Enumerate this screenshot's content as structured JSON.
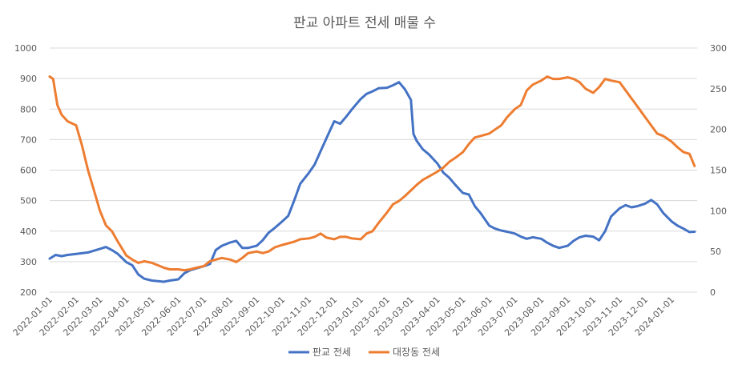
{
  "chart_data": {
    "type": "line",
    "title": "판교 아파트 전세 매물 수",
    "xlabel": "",
    "ylabel": "",
    "y_left": {
      "min": 200,
      "max": 1000,
      "ticks": [
        200,
        300,
        400,
        500,
        600,
        700,
        800,
        900,
        1000
      ]
    },
    "y_right": {
      "min": 0,
      "max": 300,
      "ticks": [
        0,
        50,
        100,
        150,
        200,
        250,
        300
      ]
    },
    "grid": true,
    "legend_position": "bottom",
    "x_tick_labels": [
      "2022-01-01",
      "2022-02-01",
      "2022-03-01",
      "2022-04-01",
      "2022-05-01",
      "2022-06-01",
      "2022-07-01",
      "2022-08-01",
      "2022-09-01",
      "2022-10-01",
      "2022-11-01",
      "2022-12-01",
      "2023-01-01",
      "2023-02-01",
      "2023-03-01",
      "2023-04-01",
      "2023-05-01",
      "2023-06-01",
      "2023-07-01",
      "2023-08-01",
      "2023-09-01",
      "2023-10-01",
      "2023-11-01",
      "2023-12-01",
      "2024-01-01"
    ],
    "series": [
      {
        "name": "판교 전세",
        "axis": "left",
        "color": "#4472C4",
        "points": [
          [
            "2022-01-01",
            310
          ],
          [
            "2022-01-08",
            322
          ],
          [
            "2022-01-15",
            318
          ],
          [
            "2022-01-22",
            322
          ],
          [
            "2022-02-01",
            325
          ],
          [
            "2022-02-15",
            330
          ],
          [
            "2022-03-01",
            342
          ],
          [
            "2022-03-08",
            348
          ],
          [
            "2022-03-15",
            338
          ],
          [
            "2022-03-22",
            325
          ],
          [
            "2022-04-01",
            298
          ],
          [
            "2022-04-08",
            288
          ],
          [
            "2022-04-15",
            258
          ],
          [
            "2022-04-22",
            244
          ],
          [
            "2022-05-01",
            238
          ],
          [
            "2022-05-08",
            236
          ],
          [
            "2022-05-15",
            234
          ],
          [
            "2022-05-22",
            238
          ],
          [
            "2022-06-01",
            242
          ],
          [
            "2022-06-08",
            262
          ],
          [
            "2022-06-15",
            272
          ],
          [
            "2022-06-22",
            278
          ],
          [
            "2022-07-01",
            285
          ],
          [
            "2022-07-08",
            292
          ],
          [
            "2022-07-15",
            338
          ],
          [
            "2022-07-22",
            352
          ],
          [
            "2022-08-01",
            363
          ],
          [
            "2022-08-08",
            368
          ],
          [
            "2022-08-15",
            345
          ],
          [
            "2022-08-22",
            345
          ],
          [
            "2022-09-01",
            352
          ],
          [
            "2022-09-08",
            370
          ],
          [
            "2022-09-15",
            395
          ],
          [
            "2022-09-22",
            410
          ],
          [
            "2022-10-01",
            432
          ],
          [
            "2022-10-08",
            450
          ],
          [
            "2022-10-15",
            500
          ],
          [
            "2022-10-22",
            555
          ],
          [
            "2022-11-01",
            590
          ],
          [
            "2022-11-08",
            618
          ],
          [
            "2022-11-15",
            662
          ],
          [
            "2022-11-22",
            705
          ],
          [
            "2022-12-01",
            760
          ],
          [
            "2022-12-08",
            752
          ],
          [
            "2022-12-15",
            775
          ],
          [
            "2022-12-22",
            800
          ],
          [
            "2023-01-01",
            833
          ],
          [
            "2023-01-08",
            850
          ],
          [
            "2023-01-15",
            858
          ],
          [
            "2023-01-22",
            868
          ],
          [
            "2023-02-01",
            870
          ],
          [
            "2023-02-08",
            878
          ],
          [
            "2023-02-15",
            888
          ],
          [
            "2023-02-22",
            865
          ],
          [
            "2023-03-01",
            830
          ],
          [
            "2023-03-04",
            718
          ],
          [
            "2023-03-08",
            695
          ],
          [
            "2023-03-15",
            668
          ],
          [
            "2023-03-22",
            652
          ],
          [
            "2023-04-01",
            622
          ],
          [
            "2023-04-08",
            592
          ],
          [
            "2023-04-15",
            575
          ],
          [
            "2023-04-22",
            552
          ],
          [
            "2023-05-01",
            525
          ],
          [
            "2023-05-08",
            520
          ],
          [
            "2023-05-15",
            482
          ],
          [
            "2023-05-22",
            458
          ],
          [
            "2023-06-01",
            418
          ],
          [
            "2023-06-08",
            408
          ],
          [
            "2023-06-15",
            402
          ],
          [
            "2023-06-22",
            398
          ],
          [
            "2023-07-01",
            392
          ],
          [
            "2023-07-08",
            382
          ],
          [
            "2023-07-15",
            375
          ],
          [
            "2023-07-22",
            380
          ],
          [
            "2023-08-01",
            375
          ],
          [
            "2023-08-08",
            362
          ],
          [
            "2023-08-15",
            352
          ],
          [
            "2023-08-22",
            345
          ],
          [
            "2023-09-01",
            352
          ],
          [
            "2023-09-08",
            368
          ],
          [
            "2023-09-15",
            380
          ],
          [
            "2023-09-22",
            385
          ],
          [
            "2023-10-01",
            382
          ],
          [
            "2023-10-08",
            370
          ],
          [
            "2023-10-15",
            400
          ],
          [
            "2023-10-22",
            448
          ],
          [
            "2023-11-01",
            475
          ],
          [
            "2023-11-08",
            485
          ],
          [
            "2023-11-15",
            478
          ],
          [
            "2023-11-22",
            482
          ],
          [
            "2023-12-01",
            490
          ],
          [
            "2023-12-08",
            502
          ],
          [
            "2023-12-15",
            488
          ],
          [
            "2023-12-22",
            460
          ],
          [
            "2024-01-01",
            432
          ],
          [
            "2024-01-08",
            418
          ],
          [
            "2024-01-15",
            408
          ],
          [
            "2024-01-22",
            397
          ],
          [
            "2024-01-28",
            398
          ]
        ]
      },
      {
        "name": "대장동 전세",
        "axis": "right",
        "color": "#ED7D31",
        "points": [
          [
            "2022-01-01",
            265
          ],
          [
            "2022-01-05",
            262
          ],
          [
            "2022-01-10",
            230
          ],
          [
            "2022-01-15",
            218
          ],
          [
            "2022-01-22",
            210
          ],
          [
            "2022-02-01",
            205
          ],
          [
            "2022-02-08",
            180
          ],
          [
            "2022-02-15",
            150
          ],
          [
            "2022-02-22",
            125
          ],
          [
            "2022-03-01",
            100
          ],
          [
            "2022-03-08",
            82
          ],
          [
            "2022-03-15",
            75
          ],
          [
            "2022-03-22",
            62
          ],
          [
            "2022-04-01",
            45
          ],
          [
            "2022-04-08",
            40
          ],
          [
            "2022-04-15",
            36
          ],
          [
            "2022-04-22",
            38
          ],
          [
            "2022-05-01",
            36
          ],
          [
            "2022-05-08",
            33
          ],
          [
            "2022-05-15",
            30
          ],
          [
            "2022-05-22",
            28
          ],
          [
            "2022-06-01",
            28
          ],
          [
            "2022-06-08",
            27
          ],
          [
            "2022-06-15",
            28
          ],
          [
            "2022-06-22",
            30
          ],
          [
            "2022-07-01",
            32
          ],
          [
            "2022-07-08",
            38
          ],
          [
            "2022-07-15",
            40
          ],
          [
            "2022-07-22",
            42
          ],
          [
            "2022-08-01",
            40
          ],
          [
            "2022-08-08",
            37
          ],
          [
            "2022-08-15",
            42
          ],
          [
            "2022-08-22",
            48
          ],
          [
            "2022-09-01",
            50
          ],
          [
            "2022-09-08",
            48
          ],
          [
            "2022-09-15",
            50
          ],
          [
            "2022-09-22",
            55
          ],
          [
            "2022-10-01",
            58
          ],
          [
            "2022-10-08",
            60
          ],
          [
            "2022-10-15",
            62
          ],
          [
            "2022-10-22",
            65
          ],
          [
            "2022-11-01",
            66
          ],
          [
            "2022-11-08",
            68
          ],
          [
            "2022-11-15",
            72
          ],
          [
            "2022-11-22",
            67
          ],
          [
            "2022-12-01",
            65
          ],
          [
            "2022-12-08",
            68
          ],
          [
            "2022-12-15",
            68
          ],
          [
            "2022-12-22",
            66
          ],
          [
            "2023-01-01",
            65
          ],
          [
            "2023-01-08",
            72
          ],
          [
            "2023-01-15",
            75
          ],
          [
            "2023-01-22",
            85
          ],
          [
            "2023-02-01",
            98
          ],
          [
            "2023-02-08",
            108
          ],
          [
            "2023-02-15",
            112
          ],
          [
            "2023-02-22",
            118
          ],
          [
            "2023-03-01",
            125
          ],
          [
            "2023-03-08",
            132
          ],
          [
            "2023-03-15",
            138
          ],
          [
            "2023-03-22",
            142
          ],
          [
            "2023-04-01",
            148
          ],
          [
            "2023-04-08",
            153
          ],
          [
            "2023-04-15",
            160
          ],
          [
            "2023-04-22",
            165
          ],
          [
            "2023-05-01",
            172
          ],
          [
            "2023-05-08",
            182
          ],
          [
            "2023-05-15",
            190
          ],
          [
            "2023-05-22",
            192
          ],
          [
            "2023-06-01",
            195
          ],
          [
            "2023-06-08",
            200
          ],
          [
            "2023-06-15",
            205
          ],
          [
            "2023-06-22",
            215
          ],
          [
            "2023-07-01",
            225
          ],
          [
            "2023-07-08",
            230
          ],
          [
            "2023-07-15",
            248
          ],
          [
            "2023-07-22",
            255
          ],
          [
            "2023-08-01",
            260
          ],
          [
            "2023-08-08",
            265
          ],
          [
            "2023-08-15",
            262
          ],
          [
            "2023-08-22",
            262
          ],
          [
            "2023-09-01",
            264
          ],
          [
            "2023-09-08",
            262
          ],
          [
            "2023-09-15",
            258
          ],
          [
            "2023-09-22",
            250
          ],
          [
            "2023-10-01",
            245
          ],
          [
            "2023-10-08",
            252
          ],
          [
            "2023-10-15",
            262
          ],
          [
            "2023-10-22",
            260
          ],
          [
            "2023-11-01",
            258
          ],
          [
            "2023-11-08",
            248
          ],
          [
            "2023-11-15",
            238
          ],
          [
            "2023-11-22",
            228
          ],
          [
            "2023-12-01",
            215
          ],
          [
            "2023-12-08",
            205
          ],
          [
            "2023-12-15",
            195
          ],
          [
            "2023-12-22",
            192
          ],
          [
            "2024-01-01",
            185
          ],
          [
            "2024-01-08",
            178
          ],
          [
            "2024-01-15",
            172
          ],
          [
            "2024-01-22",
            170
          ],
          [
            "2024-01-28",
            155
          ]
        ]
      }
    ]
  }
}
